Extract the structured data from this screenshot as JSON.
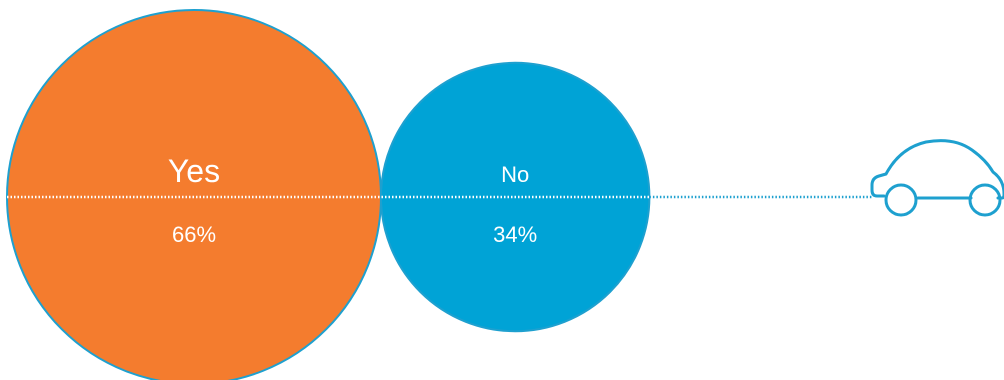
{
  "chart_data": {
    "type": "bubble",
    "title": "",
    "categories": [
      "Yes",
      "No"
    ],
    "values": [
      66,
      34
    ],
    "value_labels": [
      "66%",
      "34%"
    ],
    "unit": "%",
    "colors": {
      "Yes": "#f47c2e",
      "No": "#00a3d6",
      "outline": "#1ea0cf",
      "dotted_line": "#1ea0cf"
    },
    "icon": "car-outline-icon",
    "grid": false,
    "legend": "none"
  }
}
